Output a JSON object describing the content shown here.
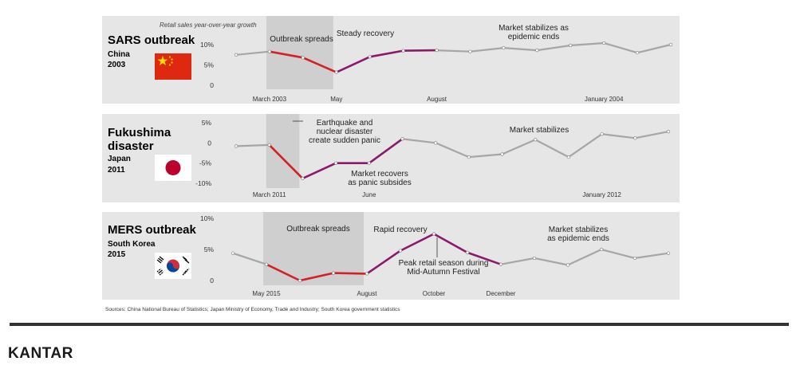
{
  "sources": "Sources: China National Bureau of Statistics; Japan Ministry of Economy, Trade and Industry; South Korea government statistics",
  "brand": "KANTAR",
  "colors": {
    "panel": "#e6e6e6",
    "shade": "#cfcfcf",
    "crisis": "#d42027",
    "recovery": "#8b1a6b",
    "stable": "#a6a6a6",
    "rule": "#333333"
  },
  "chart_data": [
    {
      "type": "line",
      "title": "SARS outbreak",
      "subtitle": [
        "China",
        "2003"
      ],
      "flag": "china-flag",
      "note": "Retail sales year-over-year growth",
      "y_ticks": [
        "10%",
        "5%",
        "0"
      ],
      "y_tick_values": [
        10,
        5,
        0
      ],
      "ylim": [
        0,
        10
      ],
      "x_ticks": [
        {
          "label": "March 2003",
          "at": 1
        },
        {
          "label": "May",
          "at": 3
        },
        {
          "label": "August",
          "at": 6
        },
        {
          "label": "January 2004",
          "at": 11
        }
      ],
      "x_count": 14,
      "values": [
        7.5,
        8.3,
        6.8,
        3.2,
        7.0,
        8.5,
        8.6,
        8.3,
        9.2,
        8.6,
        9.8,
        10.4,
        8.0,
        10.0
      ],
      "segments": [
        {
          "from": 0,
          "to": 1,
          "role": "stable"
        },
        {
          "from": 1,
          "to": 3,
          "role": "crisis"
        },
        {
          "from": 3,
          "to": 6,
          "role": "recovery"
        },
        {
          "from": 6,
          "to": 13,
          "role": "stable"
        }
      ],
      "shade": [
        1,
        3
      ],
      "annotations": [
        {
          "lines": [
            "Outbreak spreads"
          ],
          "at": 2
        },
        {
          "lines": [
            "Steady recovery"
          ],
          "at": 4.5
        },
        {
          "lines": [
            "Market stabilizes as",
            "epidemic ends"
          ],
          "at": 9
        }
      ]
    },
    {
      "type": "line",
      "title": "Fukushima disaster",
      "subtitle": [
        "Japan",
        "2011"
      ],
      "flag": "japan-flag",
      "y_ticks": [
        "5%",
        "0",
        "-5%",
        "-10%"
      ],
      "y_tick_values": [
        5,
        0,
        -5,
        -10
      ],
      "ylim": [
        -10,
        5
      ],
      "x_ticks": [
        {
          "label": "March 2011",
          "at": 1
        },
        {
          "label": "June",
          "at": 4
        },
        {
          "label": "January 2012",
          "at": 11
        }
      ],
      "x_count": 14,
      "values": [
        -0.8,
        -0.5,
        -8.8,
        -5.0,
        -5.0,
        1.0,
        0.0,
        -3.5,
        -2.8,
        0.8,
        -3.5,
        2.2,
        1.2,
        2.8
      ],
      "segments": [
        {
          "from": 0,
          "to": 1,
          "role": "stable"
        },
        {
          "from": 1,
          "to": 2,
          "role": "crisis"
        },
        {
          "from": 2,
          "to": 5,
          "role": "recovery"
        },
        {
          "from": 5,
          "to": 13,
          "role": "stable"
        }
      ],
      "shade": [
        1,
        2
      ],
      "annotations": [
        {
          "lines": [
            "Earthquake and",
            "nuclear disaster",
            "create sudden panic"
          ],
          "at": 3
        },
        {
          "lines": [
            "Market recovers",
            "as panic subsides"
          ],
          "at": 3.5
        },
        {
          "lines": [
            "Market stabilizes"
          ],
          "at": 9
        }
      ]
    },
    {
      "type": "line",
      "title": "MERS outbreak",
      "subtitle": [
        "South Korea",
        "2015"
      ],
      "flag": "south-korea-flag",
      "y_ticks": [
        "10%",
        "5%",
        "0"
      ],
      "y_tick_values": [
        10,
        5,
        0
      ],
      "ylim": [
        0,
        10
      ],
      "x_ticks": [
        {
          "label": "May 2015",
          "at": 1
        },
        {
          "label": "August",
          "at": 4
        },
        {
          "label": "October",
          "at": 6
        },
        {
          "label": "December",
          "at": 8
        }
      ],
      "x_count": 14,
      "values": [
        4.4,
        2.6,
        0.0,
        1.2,
        1.1,
        4.8,
        7.5,
        4.5,
        2.6,
        3.6,
        2.5,
        5.0,
        3.6,
        4.4
      ],
      "segments": [
        {
          "from": 0,
          "to": 1,
          "role": "stable"
        },
        {
          "from": 1,
          "to": 4,
          "role": "crisis"
        },
        {
          "from": 4,
          "to": 8,
          "role": "recovery"
        },
        {
          "from": 8,
          "to": 13,
          "role": "stable"
        }
      ],
      "shade": [
        1,
        4
      ],
      "annotations": [
        {
          "lines": [
            "Outbreak spreads"
          ],
          "at": 2.5
        },
        {
          "lines": [
            "Rapid recovery"
          ],
          "at": 5
        },
        {
          "lines": [
            "Peak retail season during",
            "Mid-Autumn Festival"
          ],
          "at": 6
        },
        {
          "lines": [
            "Market stabilizes",
            "as epidemic ends"
          ],
          "at": 11
        }
      ]
    }
  ]
}
